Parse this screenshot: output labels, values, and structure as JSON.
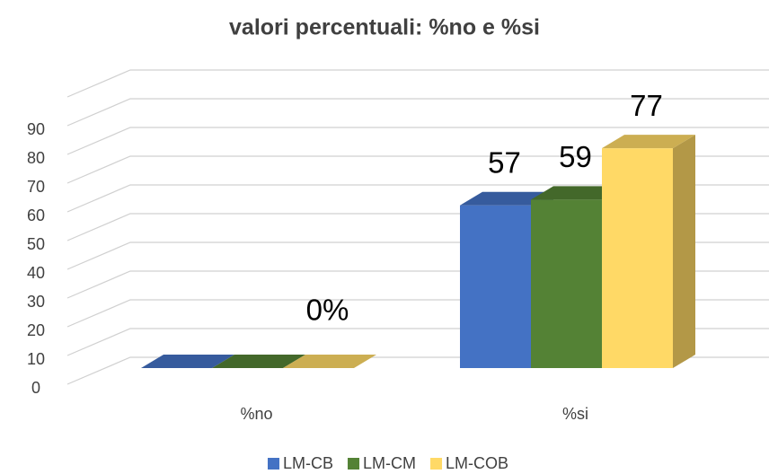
{
  "chart_data": {
    "type": "bar3d",
    "title": "valori percentuali: %no e %si",
    "categories": [
      "%no",
      "%si"
    ],
    "series": [
      {
        "name": "LM-CB",
        "color": "#4472c4",
        "values": [
          0,
          57
        ],
        "value_labels": [
          null,
          "57"
        ]
      },
      {
        "name": "LM-CM",
        "color": "#548235",
        "values": [
          0,
          59
        ],
        "value_labels": [
          null,
          "59"
        ]
      },
      {
        "name": "LM-COB",
        "color": "#ffd966",
        "values": [
          0,
          77
        ],
        "value_labels": [
          "0%",
          "77"
        ]
      }
    ],
    "ylim": [
      0,
      100
    ],
    "yticks": [
      0,
      10,
      20,
      30,
      40,
      50,
      60,
      70,
      80,
      90
    ],
    "grid": true,
    "legend": "bottom"
  }
}
